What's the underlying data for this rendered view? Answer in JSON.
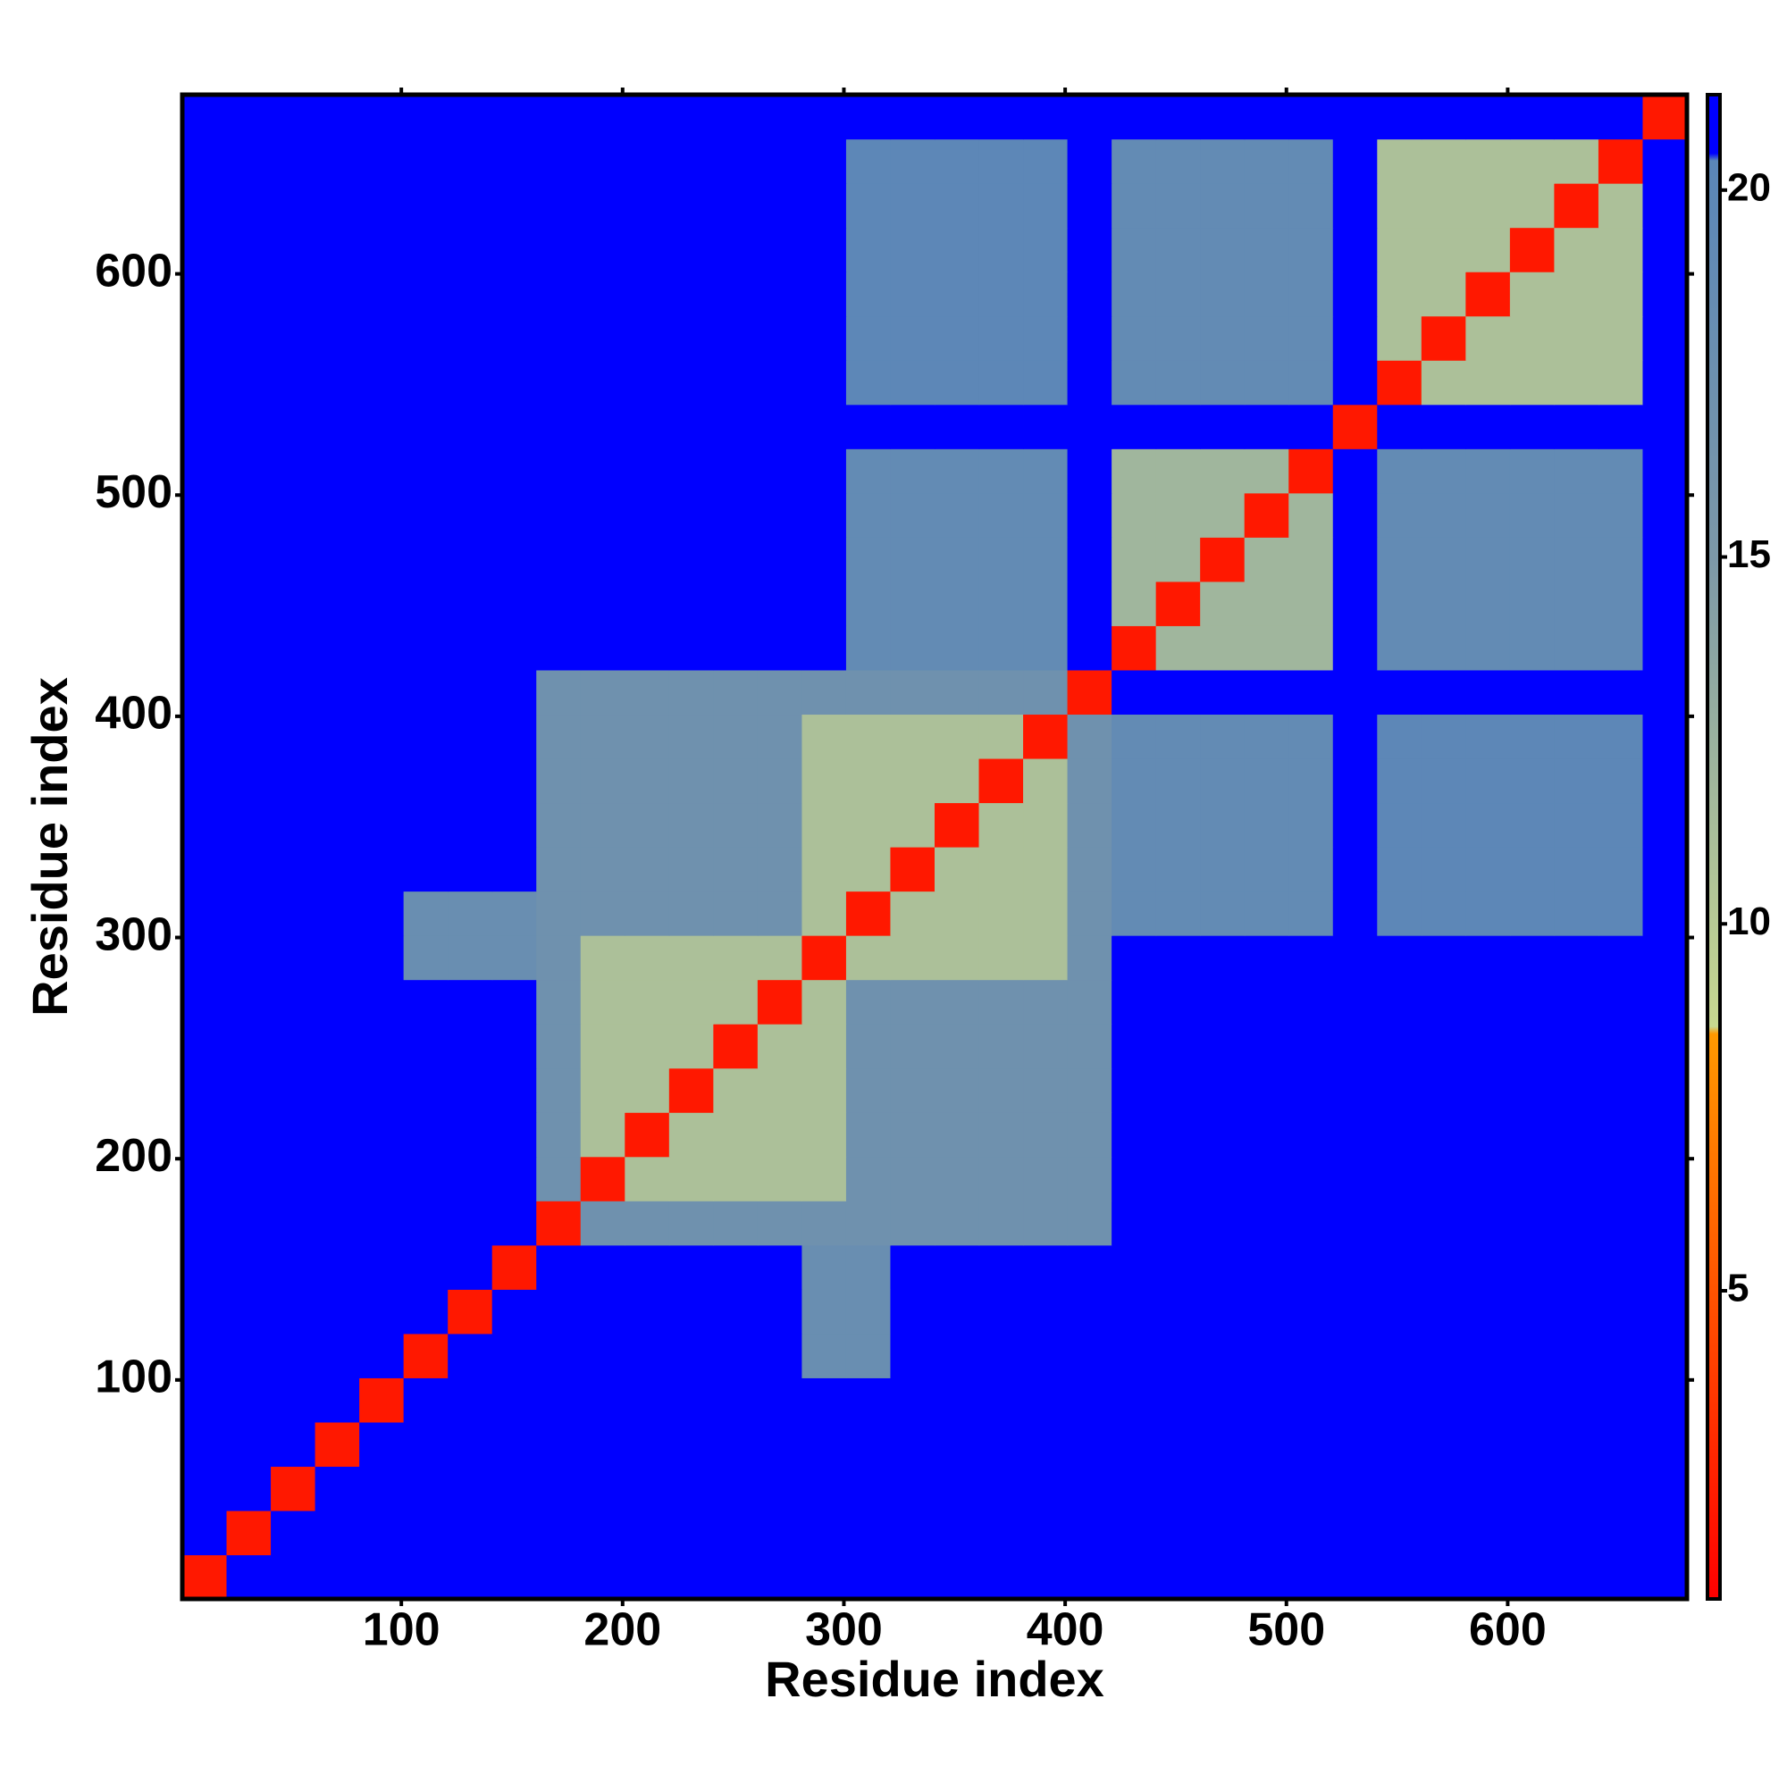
{
  "chart_data": {
    "type": "heatmap",
    "x_label": "Residue index",
    "y_label": "Residue index",
    "xlim": [
      1,
      681
    ],
    "ylim": [
      1,
      681
    ],
    "xticks": [
      100,
      200,
      300,
      400,
      500,
      600
    ],
    "yticks": [
      100,
      200,
      300,
      400,
      500,
      600
    ],
    "x_bins": [
      1,
      21,
      41,
      61,
      81,
      101,
      121,
      141,
      161,
      181,
      201,
      221,
      241,
      261,
      281,
      301,
      321,
      341,
      361,
      381,
      401,
      421,
      441,
      461,
      481,
      501,
      521,
      541,
      561,
      581,
      601,
      621,
      641,
      661,
      681
    ],
    "y_bins": [
      1,
      21,
      41,
      61,
      81,
      101,
      121,
      141,
      161,
      181,
      201,
      221,
      241,
      261,
      281,
      301,
      321,
      341,
      361,
      381,
      401,
      421,
      441,
      461,
      481,
      501,
      521,
      541,
      561,
      581,
      601,
      621,
      641,
      661,
      681
    ],
    "values": [
      [
        2,
        21,
        21,
        21,
        21,
        21,
        21,
        21,
        21,
        21,
        21,
        21,
        21,
        21,
        21,
        21,
        21,
        21,
        21,
        21,
        21,
        21,
        21,
        21,
        21,
        21,
        21,
        21,
        21,
        21,
        21,
        21,
        21,
        21
      ],
      [
        21,
        2,
        21,
        21,
        21,
        21,
        21,
        21,
        21,
        21,
        21,
        21,
        21,
        21,
        21,
        21,
        21,
        21,
        21,
        21,
        21,
        21,
        21,
        21,
        21,
        21,
        21,
        21,
        21,
        21,
        21,
        21,
        21,
        21
      ],
      [
        21,
        21,
        2,
        21,
        21,
        21,
        21,
        21,
        21,
        21,
        21,
        21,
        21,
        21,
        21,
        21,
        21,
        21,
        21,
        21,
        21,
        21,
        21,
        21,
        21,
        21,
        21,
        21,
        21,
        21,
        21,
        21,
        21,
        21
      ],
      [
        21,
        21,
        21,
        2,
        21,
        21,
        21,
        21,
        21,
        21,
        21,
        21,
        21,
        21,
        21,
        21,
        21,
        21,
        21,
        21,
        21,
        21,
        21,
        21,
        21,
        21,
        21,
        21,
        21,
        21,
        21,
        21,
        21,
        21
      ],
      [
        21,
        21,
        21,
        21,
        2,
        21,
        21,
        21,
        21,
        21,
        21,
        21,
        21,
        21,
        21,
        21,
        21,
        21,
        21,
        21,
        21,
        21,
        21,
        21,
        21,
        21,
        21,
        21,
        21,
        21,
        21,
        21,
        21,
        21
      ],
      [
        21,
        21,
        21,
        21,
        21,
        2,
        21,
        21,
        21,
        21,
        21,
        21,
        21,
        21,
        18,
        18,
        21,
        21,
        21,
        21,
        21,
        21,
        21,
        21,
        21,
        21,
        21,
        21,
        21,
        21,
        21,
        21,
        21,
        21
      ],
      [
        21,
        21,
        21,
        21,
        21,
        21,
        2,
        21,
        21,
        21,
        21,
        21,
        21,
        21,
        18,
        18,
        21,
        21,
        21,
        21,
        21,
        21,
        21,
        21,
        21,
        21,
        21,
        21,
        21,
        21,
        21,
        21,
        21,
        21
      ],
      [
        21,
        21,
        21,
        21,
        21,
        21,
        21,
        2,
        21,
        21,
        21,
        21,
        21,
        21,
        18,
        18,
        21,
        21,
        21,
        21,
        21,
        21,
        21,
        21,
        21,
        21,
        21,
        21,
        21,
        21,
        21,
        21,
        21,
        21
      ],
      [
        21,
        21,
        21,
        21,
        21,
        21,
        21,
        21,
        2,
        17,
        17,
        17,
        17,
        17,
        17,
        17,
        17,
        17,
        17,
        17,
        17,
        21,
        21,
        21,
        21,
        21,
        21,
        21,
        21,
        21,
        21,
        21,
        21,
        21
      ],
      [
        21,
        21,
        21,
        21,
        21,
        21,
        21,
        21,
        17,
        2,
        11,
        11,
        11,
        11,
        11,
        17,
        17,
        17,
        17,
        17,
        17,
        21,
        21,
        21,
        21,
        21,
        21,
        21,
        21,
        21,
        21,
        21,
        21,
        21
      ],
      [
        21,
        21,
        21,
        21,
        21,
        21,
        21,
        21,
        17,
        11,
        2,
        11,
        11,
        11,
        11,
        17,
        17,
        17,
        17,
        17,
        17,
        21,
        21,
        21,
        21,
        21,
        21,
        21,
        21,
        21,
        21,
        21,
        21,
        21
      ],
      [
        21,
        21,
        21,
        21,
        21,
        21,
        21,
        21,
        17,
        11,
        11,
        2,
        11,
        11,
        11,
        17,
        17,
        17,
        17,
        17,
        17,
        21,
        21,
        21,
        21,
        21,
        21,
        21,
        21,
        21,
        21,
        21,
        21,
        21
      ],
      [
        21,
        21,
        21,
        21,
        21,
        21,
        21,
        21,
        17,
        11,
        11,
        11,
        2,
        11,
        11,
        17,
        17,
        17,
        17,
        17,
        17,
        21,
        21,
        21,
        21,
        21,
        21,
        21,
        21,
        21,
        21,
        21,
        21,
        21
      ],
      [
        21,
        21,
        21,
        21,
        21,
        21,
        21,
        21,
        17,
        11,
        11,
        11,
        11,
        2,
        11,
        17,
        17,
        17,
        17,
        17,
        17,
        21,
        21,
        21,
        21,
        21,
        21,
        21,
        21,
        21,
        21,
        21,
        21,
        21
      ],
      [
        21,
        21,
        21,
        21,
        21,
        18,
        18,
        18,
        17,
        11,
        11,
        11,
        11,
        11,
        2,
        11,
        11,
        11,
        11,
        11,
        17,
        21,
        21,
        21,
        21,
        21,
        21,
        21,
        21,
        21,
        21,
        21,
        21,
        21
      ],
      [
        21,
        21,
        21,
        21,
        21,
        18,
        18,
        18,
        17,
        17,
        17,
        17,
        17,
        17,
        11,
        2,
        11,
        11,
        11,
        11,
        17,
        19,
        19,
        19,
        19,
        19,
        21,
        20,
        20,
        20,
        20,
        20,
        20,
        21
      ],
      [
        21,
        21,
        21,
        21,
        21,
        21,
        21,
        21,
        17,
        17,
        17,
        17,
        17,
        17,
        11,
        11,
        2,
        11,
        11,
        11,
        17,
        19,
        19,
        19,
        19,
        19,
        21,
        20,
        20,
        20,
        20,
        20,
        20,
        21
      ],
      [
        21,
        21,
        21,
        21,
        21,
        21,
        21,
        21,
        17,
        17,
        17,
        17,
        17,
        17,
        11,
        11,
        11,
        2,
        11,
        11,
        17,
        19,
        19,
        19,
        19,
        19,
        21,
        20,
        20,
        20,
        20,
        20,
        20,
        21
      ],
      [
        21,
        21,
        21,
        21,
        21,
        21,
        21,
        21,
        17,
        17,
        17,
        17,
        17,
        17,
        11,
        11,
        11,
        11,
        2,
        11,
        17,
        19,
        19,
        19,
        19,
        19,
        21,
        20,
        20,
        20,
        20,
        20,
        20,
        21
      ],
      [
        21,
        21,
        21,
        21,
        21,
        21,
        21,
        21,
        17,
        17,
        17,
        17,
        17,
        17,
        11,
        11,
        11,
        11,
        11,
        2,
        17,
        19,
        19,
        19,
        19,
        19,
        21,
        20,
        20,
        20,
        20,
        20,
        20,
        21
      ],
      [
        21,
        21,
        21,
        21,
        21,
        21,
        21,
        21,
        17,
        17,
        17,
        17,
        17,
        17,
        17,
        17,
        17,
        17,
        17,
        17,
        2,
        21,
        21,
        21,
        21,
        21,
        21,
        21,
        21,
        21,
        21,
        21,
        21,
        21
      ],
      [
        21,
        21,
        21,
        21,
        21,
        21,
        21,
        21,
        21,
        21,
        21,
        21,
        21,
        21,
        21,
        19,
        19,
        19,
        19,
        19,
        21,
        2,
        12,
        12,
        12,
        12,
        21,
        19,
        19,
        19,
        19,
        19,
        19,
        21
      ],
      [
        21,
        21,
        21,
        21,
        21,
        21,
        21,
        21,
        21,
        21,
        21,
        21,
        21,
        21,
        21,
        19,
        19,
        19,
        19,
        19,
        21,
        12,
        2,
        12,
        12,
        12,
        21,
        19,
        19,
        19,
        19,
        19,
        19,
        21
      ],
      [
        21,
        21,
        21,
        21,
        21,
        21,
        21,
        21,
        21,
        21,
        21,
        21,
        21,
        21,
        21,
        19,
        19,
        19,
        19,
        19,
        21,
        12,
        12,
        2,
        12,
        12,
        21,
        19,
        19,
        19,
        19,
        19,
        19,
        21
      ],
      [
        21,
        21,
        21,
        21,
        21,
        21,
        21,
        21,
        21,
        21,
        21,
        21,
        21,
        21,
        21,
        19,
        19,
        19,
        19,
        19,
        21,
        12,
        12,
        12,
        2,
        12,
        21,
        19,
        19,
        19,
        19,
        19,
        19,
        21
      ],
      [
        21,
        21,
        21,
        21,
        21,
        21,
        21,
        21,
        21,
        21,
        21,
        21,
        21,
        21,
        21,
        19,
        19,
        19,
        19,
        19,
        21,
        12,
        12,
        12,
        12,
        2,
        21,
        19,
        19,
        19,
        19,
        19,
        19,
        21
      ],
      [
        21,
        21,
        21,
        21,
        21,
        21,
        21,
        21,
        21,
        21,
        21,
        21,
        21,
        21,
        21,
        21,
        21,
        21,
        21,
        21,
        21,
        21,
        21,
        21,
        21,
        21,
        2,
        21,
        21,
        21,
        21,
        21,
        21,
        21
      ],
      [
        21,
        21,
        21,
        21,
        21,
        21,
        21,
        21,
        21,
        21,
        21,
        21,
        21,
        21,
        21,
        20,
        20,
        20,
        20,
        20,
        21,
        19,
        19,
        19,
        19,
        19,
        21,
        2,
        11,
        11,
        11,
        11,
        11,
        21
      ],
      [
        21,
        21,
        21,
        21,
        21,
        21,
        21,
        21,
        21,
        21,
        21,
        21,
        21,
        21,
        21,
        20,
        20,
        20,
        20,
        20,
        21,
        19,
        19,
        19,
        19,
        19,
        21,
        11,
        2,
        11,
        11,
        11,
        11,
        21
      ],
      [
        21,
        21,
        21,
        21,
        21,
        21,
        21,
        21,
        21,
        21,
        21,
        21,
        21,
        21,
        21,
        20,
        20,
        20,
        20,
        20,
        21,
        19,
        19,
        19,
        19,
        19,
        21,
        11,
        11,
        2,
        11,
        11,
        11,
        21
      ],
      [
        21,
        21,
        21,
        21,
        21,
        21,
        21,
        21,
        21,
        21,
        21,
        21,
        21,
        21,
        21,
        20,
        20,
        20,
        20,
        20,
        21,
        19,
        19,
        19,
        19,
        19,
        21,
        11,
        11,
        11,
        2,
        11,
        11,
        21
      ],
      [
        21,
        21,
        21,
        21,
        21,
        21,
        21,
        21,
        21,
        21,
        21,
        21,
        21,
        21,
        21,
        20,
        20,
        20,
        20,
        20,
        21,
        19,
        19,
        19,
        19,
        19,
        21,
        11,
        11,
        11,
        11,
        2,
        11,
        21
      ],
      [
        21,
        21,
        21,
        21,
        21,
        21,
        21,
        21,
        21,
        21,
        21,
        21,
        21,
        21,
        21,
        20,
        20,
        20,
        20,
        20,
        21,
        19,
        19,
        19,
        19,
        19,
        21,
        11,
        11,
        11,
        11,
        11,
        2,
        21
      ],
      [
        21,
        21,
        21,
        21,
        21,
        21,
        21,
        21,
        21,
        21,
        21,
        21,
        21,
        21,
        21,
        21,
        21,
        21,
        21,
        21,
        21,
        21,
        21,
        21,
        21,
        21,
        21,
        21,
        21,
        21,
        21,
        21,
        21,
        2
      ]
    ],
    "zlim": [
      0.8,
      21.3
    ],
    "zticks": [
      5,
      10,
      15,
      20
    ],
    "colorscale": [
      [
        0.8,
        "#ff0000"
      ],
      [
        8.5,
        "#ff9900"
      ],
      [
        8.6,
        "#c8d890"
      ],
      [
        15,
        "#7c98a8"
      ],
      [
        20.4,
        "#5a86b8"
      ],
      [
        20.5,
        "#0000ff"
      ],
      [
        21.3,
        "#0000ff"
      ]
    ]
  }
}
